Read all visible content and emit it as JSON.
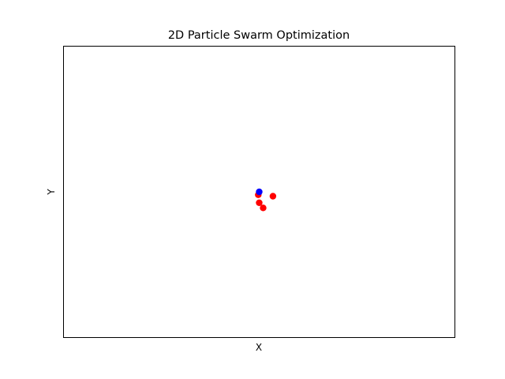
{
  "chart_data": {
    "type": "scatter",
    "title": "2D Particle Swarm Optimization",
    "xlabel": "X",
    "ylabel": "Y",
    "xlim": [
      -10,
      10
    ],
    "ylim": [
      -10,
      10
    ],
    "grid": false,
    "ticks_visible": false,
    "series": [
      {
        "color": "#ff0000",
        "x": [
          -0.05,
          0.0,
          0.2,
          0.7
        ],
        "y": [
          -0.2,
          -0.75,
          -1.1,
          -0.3
        ]
      },
      {
        "color": "#0000ff",
        "x": [
          0.0
        ],
        "y": [
          0.0
        ]
      }
    ]
  }
}
